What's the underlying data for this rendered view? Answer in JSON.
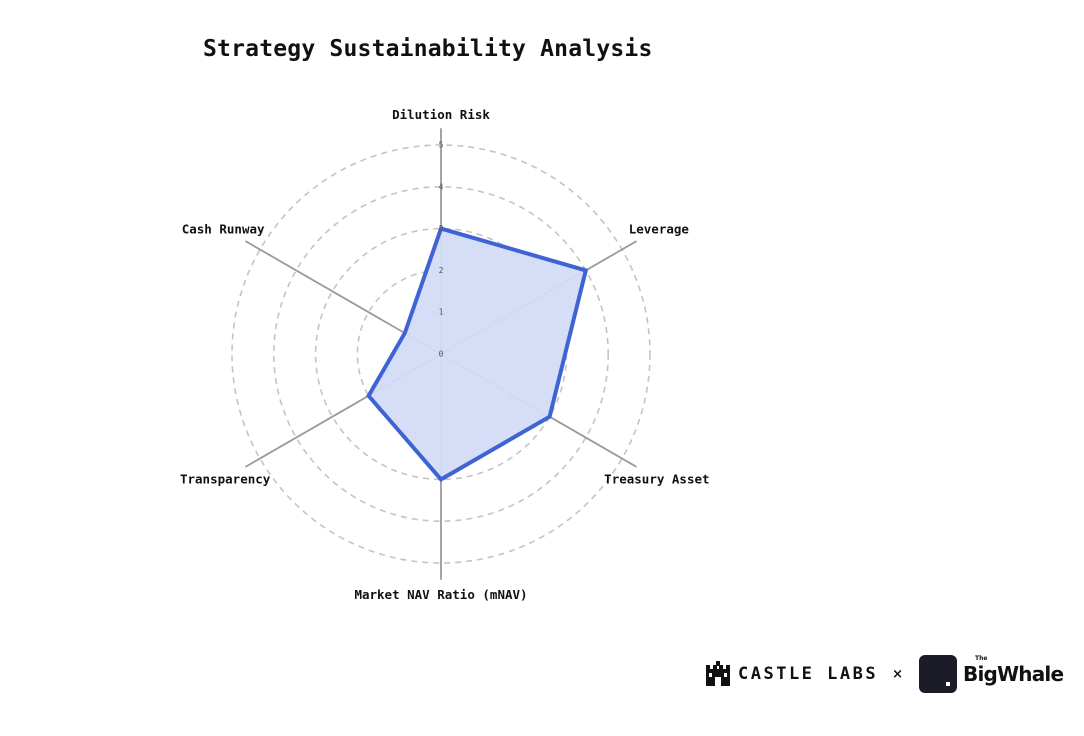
{
  "chart_data": {
    "type": "radar",
    "title": "Strategy Sustainability Analysis",
    "axes": [
      "Dilution Risk",
      "Leverage",
      "Treasury Asset",
      "Market NAV Ratio (mNAV)",
      "Transparency",
      "Cash Runway"
    ],
    "rmin": 0,
    "rmax": 5,
    "ticks": [
      0,
      1,
      2,
      3,
      4,
      5
    ],
    "tick_labels": [
      "0",
      "1",
      "2",
      "3",
      "4",
      "5"
    ],
    "grid": true,
    "series": [
      {
        "values": [
          3,
          4,
          3,
          3,
          2,
          1
        ],
        "color": "#3f63d3",
        "fill": "#d3dcf5"
      }
    ]
  },
  "footer": {
    "castle_labs": "CASTLE LABS",
    "separator": "×",
    "big_whale": "BigWhale",
    "big_whale_small": "The",
    "castle_icon": "castle-icon",
    "whale_icon": "whale-square-icon"
  },
  "colors": {
    "grid": "#c4c4c4",
    "axis": "#9a9a9a",
    "text": "#111111"
  }
}
